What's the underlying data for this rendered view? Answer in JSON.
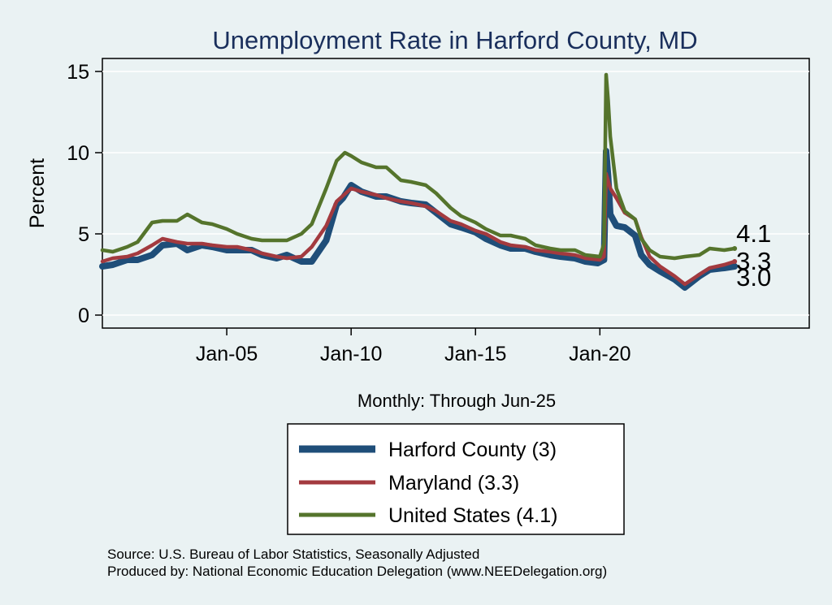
{
  "chart_data": {
    "type": "line",
    "title": "Unemployment Rate in Harford  County, MD",
    "ylabel": "Percent",
    "xlabel": "Monthly: Through Jun-25",
    "xlim": [
      "2000-01",
      "2028-06"
    ],
    "ylim": [
      -0.8,
      15.8
    ],
    "y_ticks": [
      0,
      5,
      10,
      15
    ],
    "x_ticks": [
      {
        "label": "Jan-05",
        "date": "2005-01"
      },
      {
        "label": "Jan-10",
        "date": "2010-01"
      },
      {
        "label": "Jan-15",
        "date": "2015-01"
      },
      {
        "label": "Jan-20",
        "date": "2020-01"
      }
    ],
    "grid": true,
    "legend_position": "bottom",
    "series": [
      {
        "name": "Harford  County (3)",
        "legend_key": "harford",
        "color": "#1f4e79",
        "end_label": "3.0",
        "points": [
          [
            "2000-01",
            3.0
          ],
          [
            "2000-06",
            3.1
          ],
          [
            "2001-01",
            3.4
          ],
          [
            "2001-06",
            3.4
          ],
          [
            "2002-01",
            3.7
          ],
          [
            "2002-06",
            4.3
          ],
          [
            "2003-01",
            4.4
          ],
          [
            "2003-06",
            4.0
          ],
          [
            "2004-01",
            4.3
          ],
          [
            "2004-06",
            4.2
          ],
          [
            "2005-01",
            4.0
          ],
          [
            "2005-06",
            4.0
          ],
          [
            "2006-01",
            4.0
          ],
          [
            "2006-06",
            3.7
          ],
          [
            "2007-01",
            3.5
          ],
          [
            "2007-06",
            3.7
          ],
          [
            "2008-01",
            3.3
          ],
          [
            "2008-06",
            3.3
          ],
          [
            "2009-01",
            4.6
          ],
          [
            "2009-06",
            6.8
          ],
          [
            "2009-09",
            7.2
          ],
          [
            "2010-01",
            8.0
          ],
          [
            "2010-06",
            7.6
          ],
          [
            "2011-01",
            7.3
          ],
          [
            "2011-06",
            7.3
          ],
          [
            "2012-01",
            7.0
          ],
          [
            "2012-06",
            6.9
          ],
          [
            "2013-01",
            6.8
          ],
          [
            "2013-06",
            6.3
          ],
          [
            "2014-01",
            5.6
          ],
          [
            "2014-06",
            5.4
          ],
          [
            "2015-01",
            5.1
          ],
          [
            "2015-06",
            4.7
          ],
          [
            "2016-01",
            4.3
          ],
          [
            "2016-06",
            4.1
          ],
          [
            "2017-01",
            4.1
          ],
          [
            "2017-06",
            3.9
          ],
          [
            "2018-01",
            3.7
          ],
          [
            "2018-06",
            3.6
          ],
          [
            "2019-01",
            3.5
          ],
          [
            "2019-06",
            3.3
          ],
          [
            "2019-12",
            3.2
          ],
          [
            "2020-03",
            3.4
          ],
          [
            "2020-04",
            10.1
          ],
          [
            "2020-05",
            8.5
          ],
          [
            "2020-06",
            6.2
          ],
          [
            "2020-09",
            5.5
          ],
          [
            "2021-01",
            5.4
          ],
          [
            "2021-06",
            4.9
          ],
          [
            "2021-09",
            3.7
          ],
          [
            "2022-01",
            3.1
          ],
          [
            "2022-06",
            2.7
          ],
          [
            "2023-01",
            2.2
          ],
          [
            "2023-06",
            1.7
          ],
          [
            "2024-01",
            2.4
          ],
          [
            "2024-06",
            2.8
          ],
          [
            "2025-01",
            2.9
          ],
          [
            "2025-06",
            3.0
          ]
        ]
      },
      {
        "name": "Maryland (3.3)",
        "legend_key": "maryland",
        "color": "#a33a3f",
        "end_label": "3.3",
        "points": [
          [
            "2000-01",
            3.3
          ],
          [
            "2000-06",
            3.5
          ],
          [
            "2001-01",
            3.6
          ],
          [
            "2001-06",
            3.8
          ],
          [
            "2002-01",
            4.3
          ],
          [
            "2002-06",
            4.7
          ],
          [
            "2003-01",
            4.5
          ],
          [
            "2003-06",
            4.4
          ],
          [
            "2004-01",
            4.4
          ],
          [
            "2004-06",
            4.3
          ],
          [
            "2005-01",
            4.2
          ],
          [
            "2005-06",
            4.2
          ],
          [
            "2006-01",
            4.0
          ],
          [
            "2006-06",
            3.8
          ],
          [
            "2007-01",
            3.6
          ],
          [
            "2007-06",
            3.5
          ],
          [
            "2008-01",
            3.6
          ],
          [
            "2008-06",
            4.2
          ],
          [
            "2009-01",
            5.5
          ],
          [
            "2009-06",
            7.0
          ],
          [
            "2010-01",
            7.8
          ],
          [
            "2010-06",
            7.6
          ],
          [
            "2011-01",
            7.4
          ],
          [
            "2011-06",
            7.2
          ],
          [
            "2012-01",
            7.0
          ],
          [
            "2012-06",
            6.9
          ],
          [
            "2013-01",
            6.7
          ],
          [
            "2013-06",
            6.4
          ],
          [
            "2014-01",
            5.8
          ],
          [
            "2014-06",
            5.6
          ],
          [
            "2015-01",
            5.2
          ],
          [
            "2015-06",
            5.0
          ],
          [
            "2016-01",
            4.5
          ],
          [
            "2016-06",
            4.3
          ],
          [
            "2017-01",
            4.2
          ],
          [
            "2017-06",
            4.0
          ],
          [
            "2018-01",
            3.9
          ],
          [
            "2018-06",
            3.8
          ],
          [
            "2019-01",
            3.7
          ],
          [
            "2019-06",
            3.5
          ],
          [
            "2020-01",
            3.4
          ],
          [
            "2020-03",
            3.6
          ],
          [
            "2020-04",
            8.7
          ],
          [
            "2020-06",
            7.8
          ],
          [
            "2020-09",
            7.2
          ],
          [
            "2021-01",
            6.3
          ],
          [
            "2021-06",
            5.9
          ],
          [
            "2021-09",
            4.8
          ],
          [
            "2022-01",
            3.6
          ],
          [
            "2022-06",
            3.0
          ],
          [
            "2023-01",
            2.4
          ],
          [
            "2023-06",
            1.9
          ],
          [
            "2024-01",
            2.5
          ],
          [
            "2024-06",
            2.9
          ],
          [
            "2025-01",
            3.1
          ],
          [
            "2025-06",
            3.3
          ]
        ]
      },
      {
        "name": "United States (4.1)",
        "legend_key": "us",
        "color": "#55742c",
        "end_label": "4.1",
        "points": [
          [
            "2000-01",
            4.0
          ],
          [
            "2000-06",
            3.9
          ],
          [
            "2001-01",
            4.2
          ],
          [
            "2001-06",
            4.5
          ],
          [
            "2002-01",
            5.7
          ],
          [
            "2002-06",
            5.8
          ],
          [
            "2003-01",
            5.8
          ],
          [
            "2003-06",
            6.2
          ],
          [
            "2004-01",
            5.7
          ],
          [
            "2004-06",
            5.6
          ],
          [
            "2005-01",
            5.3
          ],
          [
            "2005-06",
            5.0
          ],
          [
            "2006-01",
            4.7
          ],
          [
            "2006-06",
            4.6
          ],
          [
            "2007-01",
            4.6
          ],
          [
            "2007-06",
            4.6
          ],
          [
            "2008-01",
            5.0
          ],
          [
            "2008-06",
            5.6
          ],
          [
            "2009-01",
            7.8
          ],
          [
            "2009-06",
            9.5
          ],
          [
            "2009-10",
            10.0
          ],
          [
            "2010-01",
            9.8
          ],
          [
            "2010-06",
            9.4
          ],
          [
            "2011-01",
            9.1
          ],
          [
            "2011-06",
            9.1
          ],
          [
            "2012-01",
            8.3
          ],
          [
            "2012-06",
            8.2
          ],
          [
            "2013-01",
            8.0
          ],
          [
            "2013-06",
            7.5
          ],
          [
            "2014-01",
            6.6
          ],
          [
            "2014-06",
            6.1
          ],
          [
            "2015-01",
            5.7
          ],
          [
            "2015-06",
            5.3
          ],
          [
            "2016-01",
            4.9
          ],
          [
            "2016-06",
            4.9
          ],
          [
            "2017-01",
            4.7
          ],
          [
            "2017-06",
            4.3
          ],
          [
            "2018-01",
            4.1
          ],
          [
            "2018-06",
            4.0
          ],
          [
            "2019-01",
            4.0
          ],
          [
            "2019-06",
            3.7
          ],
          [
            "2020-01",
            3.6
          ],
          [
            "2020-03",
            4.4
          ],
          [
            "2020-04",
            14.8
          ],
          [
            "2020-05",
            13.2
          ],
          [
            "2020-06",
            11.0
          ],
          [
            "2020-09",
            7.8
          ],
          [
            "2021-01",
            6.4
          ],
          [
            "2021-06",
            5.9
          ],
          [
            "2021-09",
            4.7
          ],
          [
            "2022-01",
            4.0
          ],
          [
            "2022-06",
            3.6
          ],
          [
            "2023-01",
            3.5
          ],
          [
            "2023-06",
            3.6
          ],
          [
            "2024-01",
            3.7
          ],
          [
            "2024-06",
            4.1
          ],
          [
            "2025-01",
            4.0
          ],
          [
            "2025-06",
            4.1
          ]
        ]
      }
    ]
  },
  "source_lines": [
    "Source: U.S. Bureau of Labor Statistics, Seasonally Adjusted",
    "Produced by: National Economic Education Delegation (www.NEEDelegation.org)"
  ]
}
